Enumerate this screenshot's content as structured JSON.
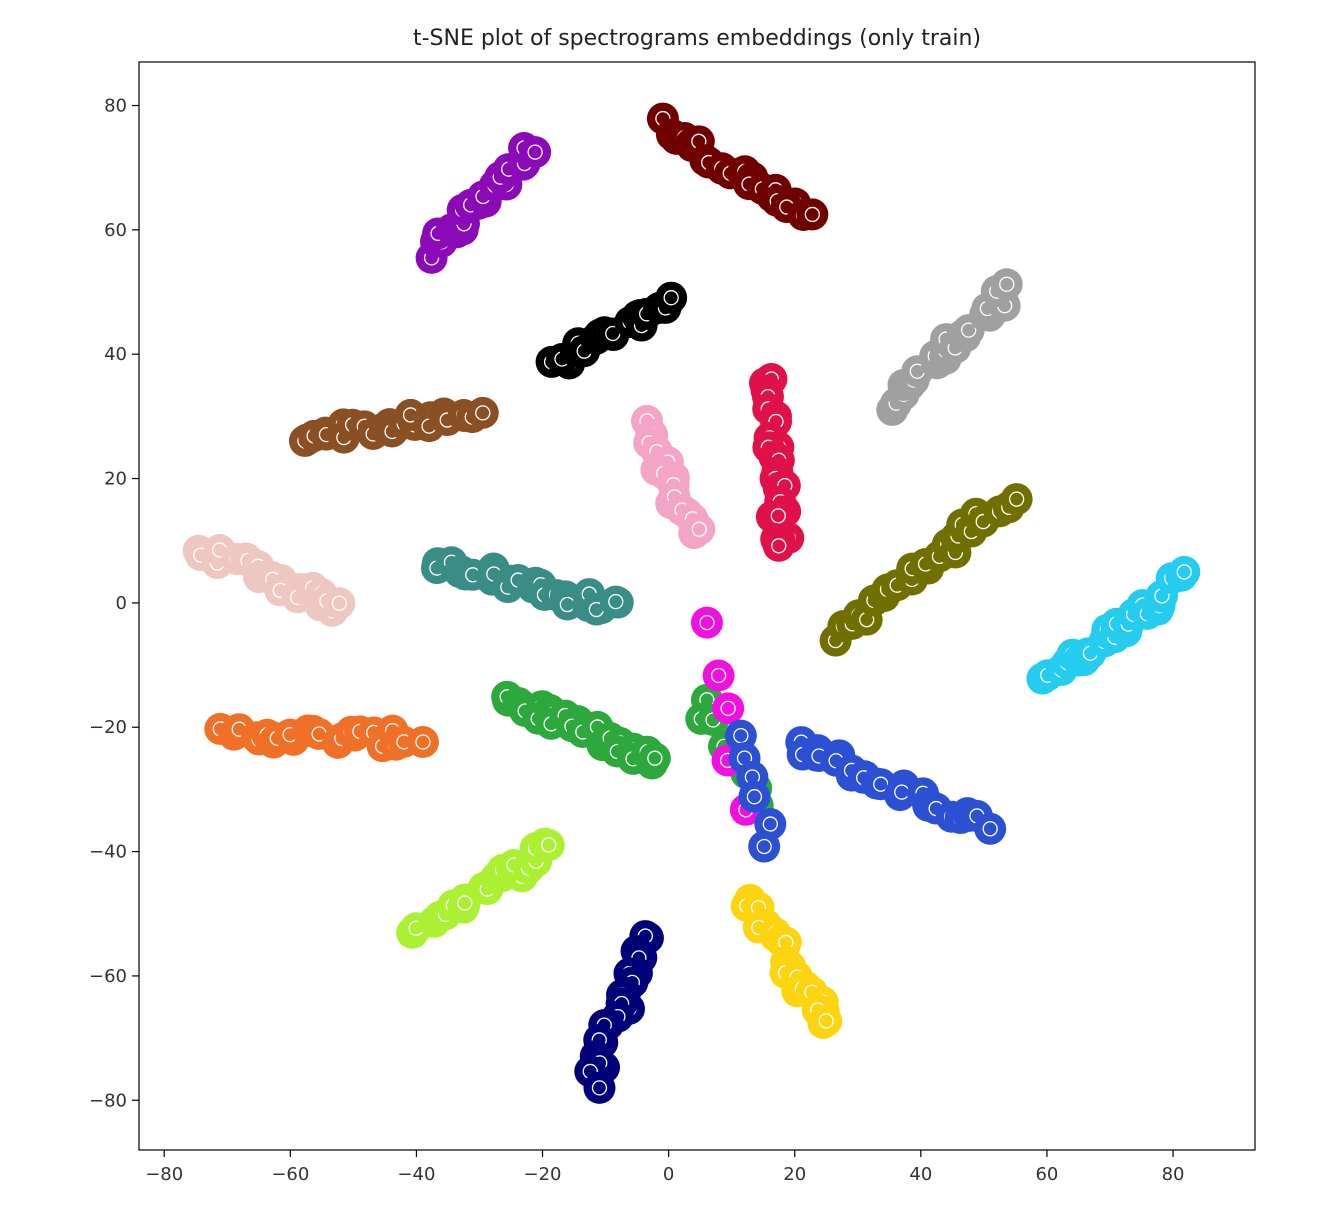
{
  "chart_data": {
    "type": "scatter",
    "title": "t-SNE plot of spectrograms embeddings (only train)",
    "xlabel": "",
    "ylabel": "",
    "xlim": [
      -84,
      93
    ],
    "ylim": [
      -88,
      87
    ],
    "xticks": [
      -80,
      -60,
      -40,
      -20,
      0,
      20,
      40,
      60,
      80
    ],
    "yticks": [
      80,
      60,
      40,
      20,
      0,
      -20,
      -40,
      -60,
      -80
    ],
    "grid": false,
    "legend": "none",
    "marker_edge_color": "#ffffff",
    "clusters": [
      {
        "color": "#8B0AB8",
        "from": [
          -38,
          56
        ],
        "to": [
          -22,
          73
        ],
        "n": 22
      },
      {
        "color": "#700000",
        "from": [
          -1,
          77
        ],
        "to": [
          22,
          62
        ],
        "n": 24
      },
      {
        "color": "#000000",
        "from": [
          -18,
          38
        ],
        "to": [
          0,
          48
        ],
        "n": 20
      },
      {
        "color": "#A0A0A0",
        "from": [
          35,
          32
        ],
        "to": [
          54,
          50
        ],
        "n": 22
      },
      {
        "color": "#E01048",
        "from": [
          16,
          36
        ],
        "to": [
          18,
          8
        ],
        "n": 24
      },
      {
        "color": "#F4A4C4",
        "from": [
          -4,
          28
        ],
        "to": [
          4,
          11
        ],
        "n": 18
      },
      {
        "color": "#8A5024",
        "from": [
          -58,
          27
        ],
        "to": [
          -30,
          30
        ],
        "n": 24
      },
      {
        "color": "#EEC8C0",
        "from": [
          -74,
          9
        ],
        "to": [
          -52,
          -1
        ],
        "n": 24
      },
      {
        "color": "#3A8C86",
        "from": [
          -37,
          7
        ],
        "to": [
          -8,
          -1
        ],
        "n": 26
      },
      {
        "color": "#707000",
        "from": [
          27,
          -5
        ],
        "to": [
          54,
          17
        ],
        "n": 26
      },
      {
        "color": "#24CCF0",
        "from": [
          60,
          -12
        ],
        "to": [
          82,
          4
        ],
        "n": 26
      },
      {
        "color": "#F07028",
        "from": [
          -70,
          -21
        ],
        "to": [
          -40,
          -22
        ],
        "n": 26
      },
      {
        "color": "#2CA83C",
        "from": [
          -26,
          -15
        ],
        "to": [
          -2,
          -26
        ],
        "n": 26
      },
      {
        "color": "#2C50D4",
        "from": [
          20,
          -23
        ],
        "to": [
          50,
          -36
        ],
        "n": 26
      },
      {
        "color": "#ACF034",
        "from": [
          -40,
          -52
        ],
        "to": [
          -18,
          -39
        ],
        "n": 22
      },
      {
        "color": "#000078",
        "from": [
          -3,
          -53
        ],
        "to": [
          -12,
          -77
        ],
        "n": 22
      },
      {
        "color": "#FCD410",
        "from": [
          13,
          -48
        ],
        "to": [
          26,
          -68
        ],
        "n": 22
      },
      {
        "color": "#2CA83C",
        "from": [
          5,
          -15
        ],
        "to": [
          14,
          -32
        ],
        "n": 8
      },
      {
        "color": "#F010E0",
        "from": [
          7,
          -3
        ],
        "to": [
          11,
          -33
        ],
        "n": 5
      },
      {
        "color": "#2C50D4",
        "from": [
          12,
          -22
        ],
        "to": [
          16,
          -38
        ],
        "n": 6
      }
    ]
  }
}
